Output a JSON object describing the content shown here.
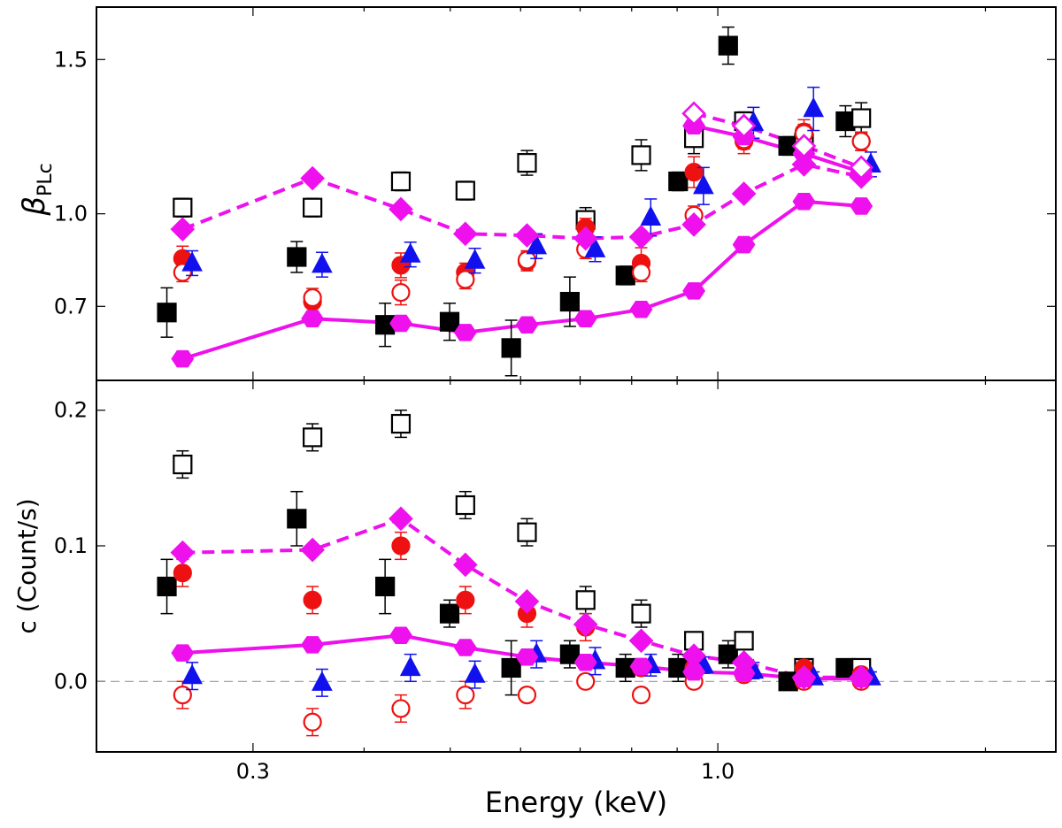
{
  "chart_data": {
    "type": "scatter",
    "xscale": "log",
    "xlabel": "Energy (keV)",
    "xlim": [
      0.2,
      2.4
    ],
    "xticks": [
      {
        "value": 0.3,
        "label": "0.3"
      },
      {
        "value": 1.0,
        "label": "1.0"
      }
    ],
    "x": [
      0.25,
      0.35,
      0.44,
      0.52,
      0.61,
      0.71,
      0.82,
      0.94,
      1.07,
      1.25,
      1.45
    ],
    "colors": {
      "black": "#000000",
      "red": "#ee1111",
      "blue": "#1111ee",
      "magenta": "#ee11ee"
    },
    "panels": [
      {
        "id": "beta",
        "ylabel_symbol": "β",
        "ylabel_subscript": "PLc",
        "ylabel": "β_PLc",
        "ylim": [
          0.46,
          1.67
        ],
        "yticks": [
          {
            "value": 0.7,
            "label": "0.7"
          },
          {
            "value": 1.0,
            "label": "1.0"
          },
          {
            "value": 1.5,
            "label": "1.5"
          }
        ],
        "ytick_labeled_only": true,
        "series": [
          {
            "name": "black filled squares",
            "marker": "square",
            "filled": true,
            "color": "#000000",
            "dx": 0.96,
            "y": [
              0.68,
              0.86,
              0.64,
              0.65,
              0.565,
              0.715,
              0.8,
              1.105,
              1.545,
              1.22,
              1.3
            ],
            "err": [
              0.08,
              0.05,
              0.07,
              0.06,
              0.09,
              0.08,
              0.03,
              0.03,
              0.06,
              0.03,
              0.05
            ]
          },
          {
            "name": "black open squares",
            "marker": "square",
            "filled": false,
            "color": "#000000",
            "dx": 1.0,
            "y": [
              1.02,
              1.02,
              1.105,
              1.075,
              1.165,
              0.98,
              1.19,
              1.245,
              1.3,
              1.23,
              1.31
            ],
            "err": [
              0.03,
              0.03,
              0.03,
              0.03,
              0.04,
              0.04,
              0.05,
              0.05,
              0.03,
              0.04,
              0.05
            ]
          },
          {
            "name": "red filled circles",
            "marker": "circle",
            "filled": true,
            "color": "#ee1111",
            "dx": 1.0,
            "y": [
              0.855,
              0.715,
              0.833,
              0.81,
              0.845,
              0.955,
              0.84,
              1.135,
              1.235,
              1.265,
              1.235
            ],
            "err": [
              0.04,
              0.03,
              0.04,
              0.03,
              0.03,
              0.03,
              0.05,
              0.05,
              0.04,
              0.04,
              0.03
            ]
          },
          {
            "name": "red open circles",
            "marker": "circle",
            "filled": false,
            "color": "#ee1111",
            "dx": 1.0,
            "y": [
              0.81,
              0.728,
              0.745,
              0.787,
              0.85,
              0.885,
              0.81,
              0.995,
              1.24,
              1.26,
              1.235
            ],
            "err": [
              0.03,
              0.03,
              0.04,
              0.03,
              0.03,
              0.03,
              0.03,
              0.03,
              0.03,
              0.03,
              0.03
            ]
          },
          {
            "name": "blue triangles",
            "marker": "triangle",
            "filled": true,
            "color": "#1111ee",
            "dx": 1.025,
            "y": [
              0.84,
              0.835,
              0.868,
              0.848,
              0.895,
              0.885,
              0.988,
              1.09,
              1.295,
              1.34,
              1.16
            ],
            "err": [
              0.04,
              0.04,
              0.04,
              0.04,
              0.04,
              0.04,
              0.06,
              0.06,
              0.05,
              0.07,
              0.04
            ]
          },
          {
            "name": "magenta hexagons solid line",
            "marker": "hexagon",
            "filled": true,
            "color": "#ee11ee",
            "dx": 1.0,
            "line": "solid",
            "y": [
              0.53,
              0.66,
              0.645,
              0.615,
              0.64,
              0.66,
              0.69,
              0.75,
              0.9,
              1.04,
              1.025
            ]
          },
          {
            "name": "magenta diamonds dashed line",
            "marker": "diamond",
            "filled": true,
            "color": "#ee11ee",
            "dx": 1.0,
            "line": "dashed",
            "y": [
              0.95,
              1.115,
              1.015,
              0.935,
              0.93,
              0.92,
              0.925,
              0.965,
              1.065,
              1.16,
              1.12
            ]
          },
          {
            "name": "magenta hexagons upper solid line",
            "marker": "hexagon",
            "filled": true,
            "color": "#ee11ee",
            "dx": 1.0,
            "line": "solid",
            "start": 7,
            "y": [
              null,
              null,
              null,
              null,
              null,
              null,
              null,
              1.285,
              1.25,
              1.195,
              1.135
            ]
          },
          {
            "name": "magenta open diamonds dashed line",
            "marker": "diamond",
            "filled": false,
            "color": "#ee11ee",
            "dx": 1.0,
            "line": "dashed",
            "start": 7,
            "y": [
              null,
              null,
              null,
              null,
              null,
              null,
              null,
              1.325,
              1.285,
              1.22,
              1.15
            ]
          }
        ]
      },
      {
        "id": "count",
        "ylabel": "c (Count/s)",
        "ylim": [
          -0.052,
          0.222
        ],
        "yticks": [
          {
            "value": 0.0,
            "label": "0.0"
          },
          {
            "value": 0.1,
            "label": "0.1"
          },
          {
            "value": 0.2,
            "label": "0.2"
          }
        ],
        "hline": 0.0,
        "series": [
          {
            "name": "black filled squares",
            "marker": "square",
            "filled": true,
            "color": "#000000",
            "dx": 0.96,
            "y": [
              0.07,
              0.12,
              0.07,
              0.05,
              0.01,
              0.02,
              0.01,
              0.01,
              0.02,
              0.0,
              0.01
            ],
            "err": [
              0.02,
              0.02,
              0.02,
              0.01,
              0.02,
              0.01,
              0.01,
              0.01,
              0.01,
              0.005,
              0.005
            ]
          },
          {
            "name": "black open squares",
            "marker": "square",
            "filled": false,
            "color": "#000000",
            "dx": 1.0,
            "y": [
              0.16,
              0.18,
              0.19,
              0.13,
              0.11,
              0.06,
              0.05,
              0.03,
              0.03,
              0.01,
              0.01
            ],
            "err": [
              0.01,
              0.01,
              0.01,
              0.01,
              0.01,
              0.01,
              0.01,
              0.005,
              0.005,
              0.005,
              0.005
            ]
          },
          {
            "name": "red filled circles",
            "marker": "circle",
            "filled": true,
            "color": "#ee1111",
            "dx": 1.0,
            "y": [
              0.08,
              0.06,
              0.1,
              0.06,
              0.05,
              0.04,
              0.01,
              0.01,
              0.005,
              0.01,
              0.005
            ],
            "err": [
              0.01,
              0.01,
              0.01,
              0.01,
              0.01,
              0.01,
              0.005,
              0.005,
              0.005,
              0.005,
              0.005
            ]
          },
          {
            "name": "red open circles",
            "marker": "circle",
            "filled": false,
            "color": "#ee1111",
            "dx": 1.0,
            "y": [
              -0.01,
              -0.03,
              -0.02,
              -0.01,
              -0.01,
              0.0,
              -0.01,
              0.0,
              0.005,
              0.0,
              0.0
            ],
            "err": [
              0.01,
              0.01,
              0.01,
              0.01,
              0.005,
              0.005,
              0.005,
              0.005,
              0.005,
              0.005,
              0.005
            ]
          },
          {
            "name": "blue triangles",
            "marker": "triangle",
            "filled": true,
            "color": "#1111ee",
            "dx": 1.025,
            "y": [
              0.004,
              -0.001,
              0.01,
              0.005,
              0.02,
              0.015,
              0.012,
              0.012,
              0.008,
              0.003,
              0.003
            ],
            "err": [
              0.01,
              0.01,
              0.01,
              0.01,
              0.01,
              0.01,
              0.008,
              0.006,
              0.006,
              0.004,
              0.004
            ]
          },
          {
            "name": "magenta hexagons solid line",
            "marker": "hexagon",
            "filled": true,
            "color": "#ee11ee",
            "dx": 1.0,
            "line": "solid",
            "y": [
              0.021,
              0.027,
              0.034,
              0.025,
              0.018,
              0.014,
              0.011,
              0.007,
              0.006,
              0.002,
              0.002
            ]
          },
          {
            "name": "magenta diamonds dashed line",
            "marker": "diamond",
            "filled": true,
            "color": "#ee11ee",
            "dx": 1.0,
            "line": "dashed",
            "y": [
              0.095,
              0.097,
              0.12,
              0.086,
              0.059,
              0.042,
              0.03,
              0.019,
              0.014,
              0.003,
              0.003
            ]
          }
        ]
      }
    ]
  }
}
